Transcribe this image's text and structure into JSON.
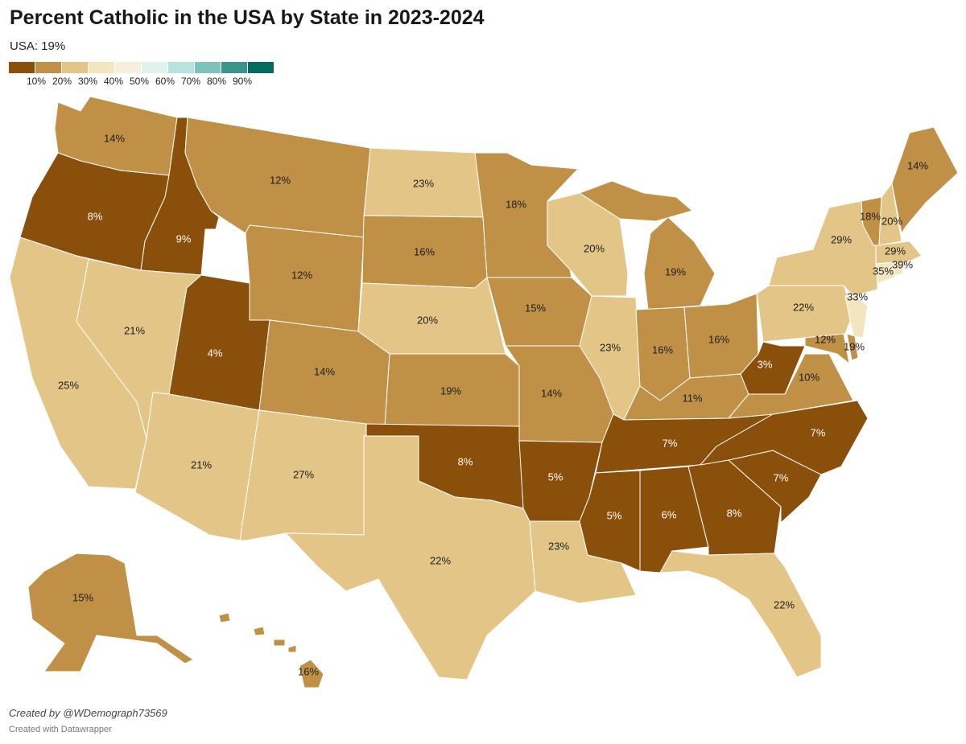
{
  "title": "Percent Catholic in the USA by State in 2023-2024",
  "subtitle": "USA: 19%",
  "colors": {
    "bin_lt10": "#8a4f0a",
    "bin_10_20": "#bf9046",
    "bin_20_30": "#e3c687",
    "bin_30_40": "#f3e5c0",
    "bin_40_50": "#f6efe0",
    "bin_50_60": "#dff3ee",
    "bin_60_70": "#b7e3de",
    "bin_70_80": "#7dc3bc",
    "bin_80_90": "#3b9489",
    "bin_90_100": "#016c5f"
  },
  "legend": {
    "swatches": [
      "#8a4f0a",
      "#bf9046",
      "#e3c687",
      "#f3e5c0",
      "#f6efe0",
      "#dff3ee",
      "#b7e3de",
      "#7dc3bc",
      "#3b9489",
      "#016c5f"
    ],
    "ticks": [
      "10%",
      "20%",
      "30%",
      "40%",
      "50%",
      "60%",
      "70%",
      "80%",
      "90%"
    ]
  },
  "states": {
    "WA": "14%",
    "OR": "8%",
    "CA": "25%",
    "ID": "9%",
    "NV": "21%",
    "UT": "4%",
    "AZ": "21%",
    "MT": "12%",
    "WY": "12%",
    "CO": "14%",
    "NM": "27%",
    "ND": "23%",
    "SD": "16%",
    "NE": "20%",
    "KS": "19%",
    "OK": "8%",
    "TX": "22%",
    "MN": "18%",
    "IA": "15%",
    "MO": "14%",
    "AR": "5%",
    "LA": "23%",
    "WI": "20%",
    "IL": "23%",
    "MI": "19%",
    "IN": "16%",
    "OH": "16%",
    "KY": "11%",
    "TN": "7%",
    "MS": "5%",
    "AL": "6%",
    "GA": "8%",
    "FL": "22%",
    "SC": "7%",
    "NC": "7%",
    "VA": "10%",
    "WV": "3%",
    "PA": "22%",
    "NY": "29%",
    "NJ": "33%",
    "MD": "12%",
    "DE": "19%",
    "CT": "35%",
    "RI": "39%",
    "MA": "29%",
    "VT": "18%",
    "NH": "20%",
    "ME": "14%",
    "AK": "15%",
    "HI": "16%"
  },
  "credit": "Created by @WDemograph73569",
  "made_with": "Created with Datawrapper"
}
